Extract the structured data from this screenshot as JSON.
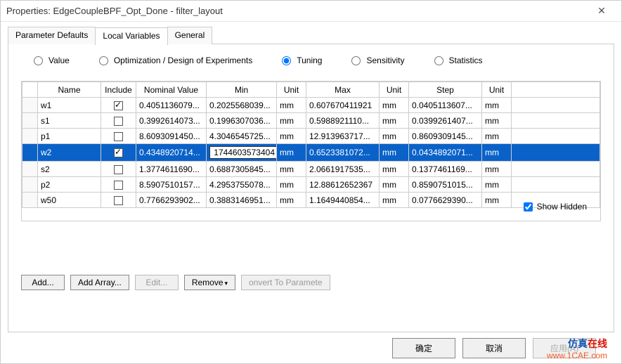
{
  "window": {
    "title": "Properties: EdgeCoupleBPF_Opt_Done - filter_layout"
  },
  "tabs": {
    "items": [
      {
        "label": "Parameter Defaults",
        "active": false
      },
      {
        "label": "Local Variables",
        "active": true
      },
      {
        "label": "General",
        "active": false
      }
    ]
  },
  "radios": {
    "items": [
      {
        "label": "Value",
        "checked": false
      },
      {
        "label": "Optimization / Design of Experiments",
        "checked": false
      },
      {
        "label": "Tuning",
        "checked": true
      },
      {
        "label": "Sensitivity",
        "checked": false
      },
      {
        "label": "Statistics",
        "checked": false
      }
    ]
  },
  "table": {
    "headers": [
      "",
      "Name",
      "Include",
      "Nominal Value",
      "Min",
      "Unit",
      "Max",
      "Unit",
      "Step",
      "Unit",
      ""
    ],
    "rows": [
      {
        "name": "w1",
        "include": true,
        "nominal": "0.4051136079...",
        "min": "0.2025568039...",
        "u1": "mm",
        "max": "0.607670411921",
        "u2": "mm",
        "step": "0.0405113607...",
        "u3": "mm",
        "sel": false
      },
      {
        "name": "s1",
        "include": false,
        "nominal": "0.3992614073...",
        "min": "0.1996307036...",
        "u1": "mm",
        "max": "0.5988921110...",
        "u2": "mm",
        "step": "0.0399261407...",
        "u3": "mm",
        "sel": false
      },
      {
        "name": "p1",
        "include": false,
        "nominal": "8.6093091450...",
        "min": "4.3046545725...",
        "u1": "mm",
        "max": "12.913963717...",
        "u2": "mm",
        "step": "0.8609309145...",
        "u3": "mm",
        "sel": false
      },
      {
        "name": "w2",
        "include": true,
        "nominal": "0.4348920714...",
        "min": "1744603573404",
        "u1": "mm",
        "max": "0.6523381072...",
        "u2": "mm",
        "step": "0.0434892071...",
        "u3": "mm",
        "sel": true,
        "editing": "min"
      },
      {
        "name": "s2",
        "include": false,
        "nominal": "1.3774611690...",
        "min": "0.6887305845...",
        "u1": "mm",
        "max": "2.0661917535...",
        "u2": "mm",
        "step": "0.1377461169...",
        "u3": "mm",
        "sel": false
      },
      {
        "name": "p2",
        "include": false,
        "nominal": "8.5907510157...",
        "min": "4.2953755078...",
        "u1": "mm",
        "max": "12.88612652367",
        "u2": "mm",
        "step": "0.8590751015...",
        "u3": "mm",
        "sel": false
      },
      {
        "name": "w50",
        "include": false,
        "nominal": "0.7766293902...",
        "min": "0.3883146951...",
        "u1": "mm",
        "max": "1.1649440854...",
        "u2": "mm",
        "step": "0.0776629390...",
        "u3": "mm",
        "sel": false
      }
    ]
  },
  "show_hidden": {
    "label": "Show Hidden",
    "checked": true
  },
  "panel_buttons": {
    "add": "Add...",
    "add_array": "Add Array...",
    "edit": "Edit...",
    "remove": "Remove",
    "convert": "onvert To Paramete"
  },
  "dlg_buttons": {
    "ok": "确定",
    "cancel": "取消",
    "apply": "应用(A)"
  },
  "watermark": {
    "brand_a": "仿真",
    "brand_b": "在线",
    "url": "www.1CAE.com"
  },
  "colors": {
    "selection": "#0a62c9"
  }
}
